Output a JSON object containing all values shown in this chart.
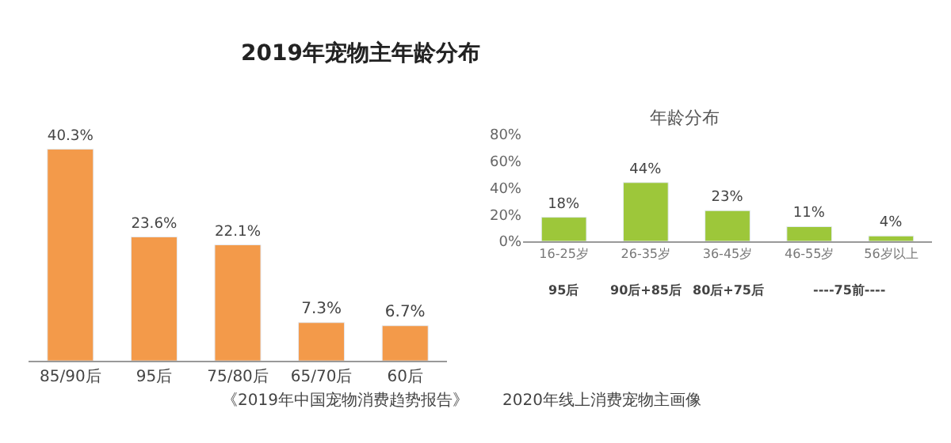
{
  "chart_data": [
    {
      "type": "bar",
      "title": "2019年宠物主年龄分布",
      "categories": [
        "85/90后",
        "95后",
        "75/80后",
        "65/70后",
        "60后"
      ],
      "values": [
        40.3,
        23.6,
        22.1,
        7.3,
        6.7
      ],
      "value_labels": [
        "40.3%",
        "23.6%",
        "22.1%",
        "7.3%",
        "6.7%"
      ],
      "color": "#f39a4a",
      "annotations": [
        "《2019年中国宠物消费趋势报告》"
      ],
      "tick_labels": "x"
    },
    {
      "type": "bar",
      "title": "年龄分布",
      "categories": [
        "16-25岁",
        "26-35岁",
        "36-45岁",
        "46-55岁",
        "56岁以上"
      ],
      "values": [
        18,
        44,
        23,
        11,
        4
      ],
      "value_labels": [
        "18%",
        "44%",
        "23%",
        "11%",
        "4%"
      ],
      "color": "#9dc73a",
      "ylim": [
        0,
        80
      ],
      "yticks": [
        {
          "value": 0,
          "label": "0%"
        },
        {
          "value": 20,
          "label": "20%"
        },
        {
          "value": 40,
          "label": "40%"
        },
        {
          "value": 60,
          "label": "60%"
        },
        {
          "value": 80,
          "label": "80%"
        }
      ],
      "annotations": [
        "95后",
        "90后+85后",
        "80后+75后",
        "----75前----",
        "2020年线上消费宠物主画像"
      ]
    }
  ]
}
